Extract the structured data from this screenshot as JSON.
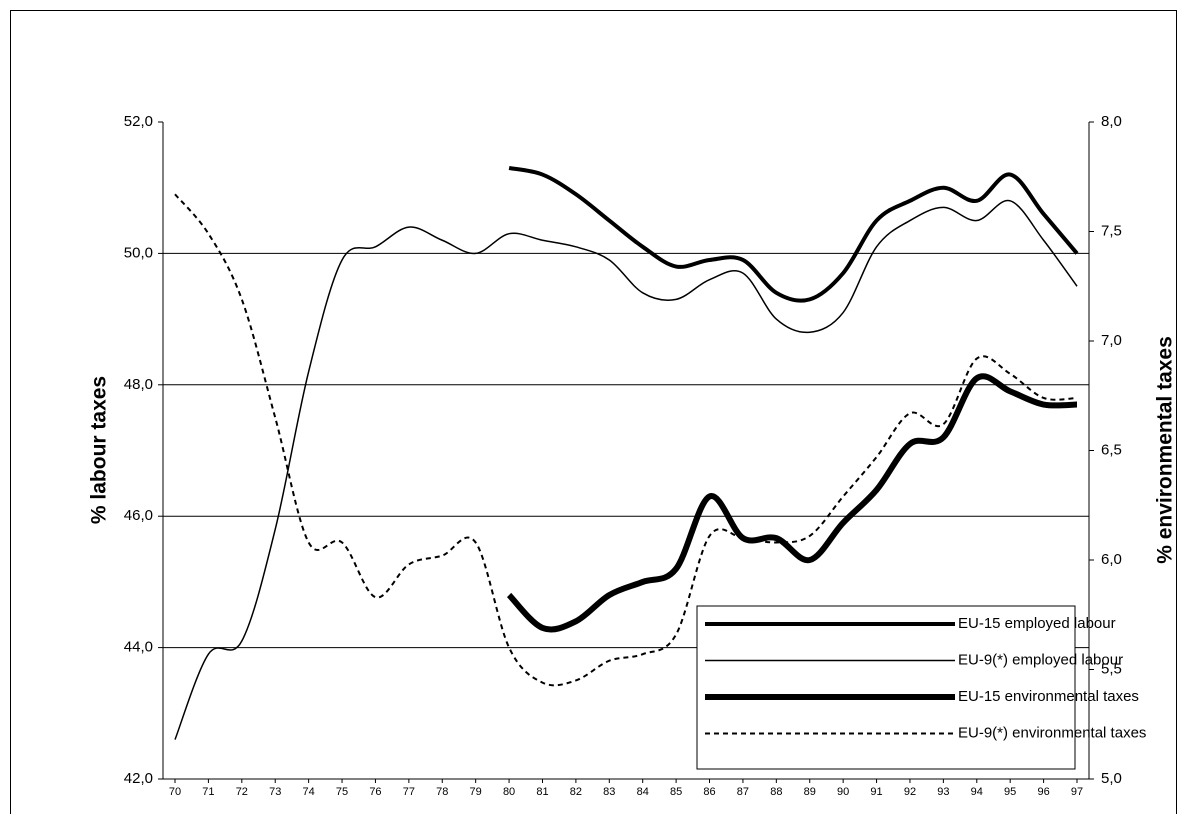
{
  "chart_data": {
    "type": "line",
    "ylabel": "%  labour taxes",
    "y2label": "%  environmental taxes",
    "categories": [
      "70",
      "71",
      "72",
      "73",
      "74",
      "75",
      "76",
      "77",
      "78",
      "79",
      "80",
      "81",
      "82",
      "83",
      "84",
      "85",
      "86",
      "87",
      "88",
      "89",
      "90",
      "91",
      "92",
      "93",
      "94",
      "95",
      "96",
      "97"
    ],
    "ylim": [
      42,
      52
    ],
    "yticks": [
      {
        "value": 42,
        "label": "42,0"
      },
      {
        "value": 44,
        "label": "44,0"
      },
      {
        "value": 46,
        "label": "46,0"
      },
      {
        "value": 48,
        "label": "48,0"
      },
      {
        "value": 50,
        "label": "50,0"
      },
      {
        "value": 52,
        "label": "52,0"
      }
    ],
    "y2lim": [
      5,
      8
    ],
    "y2ticks": [
      {
        "value": 5,
        "label": "5,0"
      },
      {
        "value": 5.5,
        "label": "5,5"
      },
      {
        "value": 6,
        "label": "6,0"
      },
      {
        "value": 6.5,
        "label": "6,5"
      },
      {
        "value": 7,
        "label": "7,0"
      },
      {
        "value": 7.5,
        "label": "7,5"
      },
      {
        "value": 8,
        "label": "8,0"
      }
    ],
    "grid": true,
    "legend": "lower right",
    "series": [
      {
        "name": "EU-15 employed labour",
        "color": "#000000",
        "width": 4,
        "dash": "solid",
        "values": [
          null,
          null,
          null,
          null,
          null,
          null,
          null,
          null,
          null,
          null,
          51.3,
          51.2,
          50.9,
          50.5,
          50.1,
          49.8,
          49.9,
          49.9,
          49.4,
          49.3,
          49.7,
          50.5,
          50.8,
          51.0,
          50.8,
          51.2,
          50.6,
          50.0
        ]
      },
      {
        "name": "EU-9(*) employed labour",
        "color": "#000000",
        "width": 1.5,
        "dash": "solid",
        "values": [
          42.6,
          43.9,
          44.1,
          45.8,
          48.2,
          49.9,
          50.1,
          50.4,
          50.2,
          50.0,
          50.3,
          50.2,
          50.1,
          49.9,
          49.4,
          49.3,
          49.6,
          49.7,
          49.0,
          48.8,
          49.1,
          50.1,
          50.5,
          50.7,
          50.5,
          50.8,
          50.2,
          49.5
        ]
      },
      {
        "name": "EU-15 environmental taxes",
        "color": "#000000",
        "width": 6,
        "dash": "solid",
        "axis": "y2",
        "values": [
          null,
          null,
          null,
          null,
          null,
          null,
          null,
          null,
          null,
          null,
          5.84,
          5.69,
          5.72,
          5.84,
          5.9,
          5.96,
          6.29,
          6.1,
          6.1,
          6.0,
          6.17,
          6.32,
          6.53,
          6.56,
          6.83,
          6.77,
          6.71,
          6.71
        ]
      },
      {
        "name": "EU-9(*) environmental taxes",
        "color": "#000000",
        "width": 2,
        "dash": "dashed",
        "axis": "y2",
        "values": [
          7.67,
          7.49,
          7.19,
          6.65,
          6.08,
          6.08,
          5.83,
          5.98,
          6.02,
          6.08,
          5.6,
          5.44,
          5.45,
          5.54,
          5.57,
          5.66,
          6.11,
          6.1,
          6.08,
          6.11,
          6.29,
          6.47,
          6.67,
          6.62,
          6.92,
          6.85,
          6.74,
          6.74
        ]
      }
    ]
  }
}
